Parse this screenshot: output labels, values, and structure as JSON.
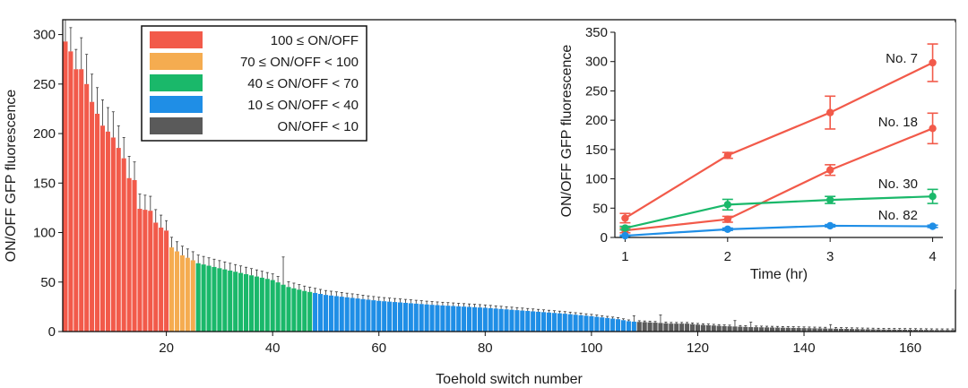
{
  "chart_data": [
    {
      "type": "bar",
      "xlabel": "Toehold switch number",
      "ylabel": "ON/OFF GFP fluorescence",
      "xlim": [
        0.5,
        168.5
      ],
      "ylim": [
        0,
        315
      ],
      "xticks": [
        20,
        40,
        60,
        80,
        100,
        120,
        140,
        160
      ],
      "yticks": [
        0,
        50,
        100,
        150,
        200,
        250,
        300
      ],
      "legend": [
        {
          "label": "100 ≤ ON/OFF",
          "color": "#f25a4a"
        },
        {
          "label": "70 ≤ ON/OFF < 100",
          "color": "#f5ac50"
        },
        {
          "label": "40 ≤ ON/OFF < 70",
          "color": "#1ab86a"
        },
        {
          "label": "10 ≤ ON/OFF < 40",
          "color": "#1f8ee6"
        },
        {
          "label": "ON/OFF < 10",
          "color": "#5a5a5a"
        }
      ],
      "bins": [
        {
          "min": 100,
          "color": "#f25a4a"
        },
        {
          "min": 70,
          "color": "#f5ac50"
        },
        {
          "min": 40,
          "color": "#1ab86a"
        },
        {
          "min": 10,
          "color": "#1f8ee6"
        },
        {
          "min": -1,
          "color": "#5a5a5a"
        }
      ],
      "anchors": [
        [
          1,
          293
        ],
        [
          2,
          283
        ],
        [
          3,
          265
        ],
        [
          4,
          265
        ],
        [
          5,
          250
        ],
        [
          6,
          232
        ],
        [
          7,
          220
        ],
        [
          8,
          208
        ],
        [
          10,
          196
        ],
        [
          12,
          175
        ],
        [
          13,
          155
        ],
        [
          14,
          153
        ],
        [
          15,
          124
        ],
        [
          17,
          122
        ],
        [
          18,
          110
        ],
        [
          19,
          105
        ],
        [
          20,
          102
        ],
        [
          21,
          85
        ],
        [
          23,
          77
        ],
        [
          25,
          72
        ],
        [
          26,
          69
        ],
        [
          30,
          64
        ],
        [
          35,
          58
        ],
        [
          40,
          52
        ],
        [
          43,
          45
        ],
        [
          46,
          41
        ],
        [
          47,
          40
        ],
        [
          50,
          37
        ],
        [
          55,
          34
        ],
        [
          60,
          31
        ],
        [
          65,
          29
        ],
        [
          70,
          27
        ],
        [
          75,
          25.5
        ],
        [
          80,
          24
        ],
        [
          85,
          22
        ],
        [
          90,
          20
        ],
        [
          95,
          18
        ],
        [
          100,
          15.5
        ],
        [
          105,
          12.5
        ],
        [
          107,
          10.5
        ],
        [
          108,
          10
        ],
        [
          112,
          9
        ],
        [
          115,
          8
        ],
        [
          118,
          8
        ],
        [
          120,
          7
        ],
        [
          125,
          5.5
        ],
        [
          130,
          4.5
        ],
        [
          135,
          4
        ],
        [
          140,
          3.5
        ],
        [
          145,
          3
        ],
        [
          150,
          2.5
        ],
        [
          155,
          2
        ],
        [
          160,
          1.8
        ],
        [
          165,
          1.5
        ],
        [
          168,
          1.5
        ]
      ],
      "error_fraction": 0.12,
      "error_overrides": [
        [
          1,
          22
        ],
        [
          2,
          24
        ],
        [
          3,
          20
        ],
        [
          5,
          30
        ],
        [
          6,
          28
        ],
        [
          8,
          26
        ],
        [
          10,
          26
        ],
        [
          13,
          22
        ],
        [
          20,
          10
        ],
        [
          42,
          28
        ],
        [
          108,
          6
        ],
        [
          113,
          8
        ],
        [
          127,
          6
        ],
        [
          130,
          5
        ],
        [
          145,
          4
        ]
      ]
    },
    {
      "type": "line",
      "xlabel": "Time (hr)",
      "ylabel": "ON/OFF GFP fluorescence",
      "x": [
        1,
        2,
        3,
        4
      ],
      "xlim": [
        0.9,
        4.1
      ],
      "ylim": [
        0,
        350
      ],
      "xticks": [
        1,
        2,
        3,
        4
      ],
      "yticks": [
        0,
        50,
        100,
        150,
        200,
        250,
        300,
        350
      ],
      "series": [
        {
          "name": "No. 7",
          "color": "#f25a4a",
          "values": [
            33,
            140,
            213,
            298
          ],
          "errors": [
            8,
            5,
            28,
            32
          ]
        },
        {
          "name": "No. 18",
          "color": "#f25a4a",
          "values": [
            12,
            31,
            115,
            186
          ],
          "errors": [
            4,
            5,
            9,
            26
          ]
        },
        {
          "name": "No. 30",
          "color": "#1ab86a",
          "values": [
            16,
            56,
            64,
            70
          ],
          "errors": [
            3,
            9,
            6,
            12
          ]
        },
        {
          "name": "No. 82",
          "color": "#1f8ee6",
          "values": [
            3,
            14,
            20,
            19
          ],
          "errors": [
            1,
            2,
            2,
            2
          ]
        }
      ]
    }
  ]
}
